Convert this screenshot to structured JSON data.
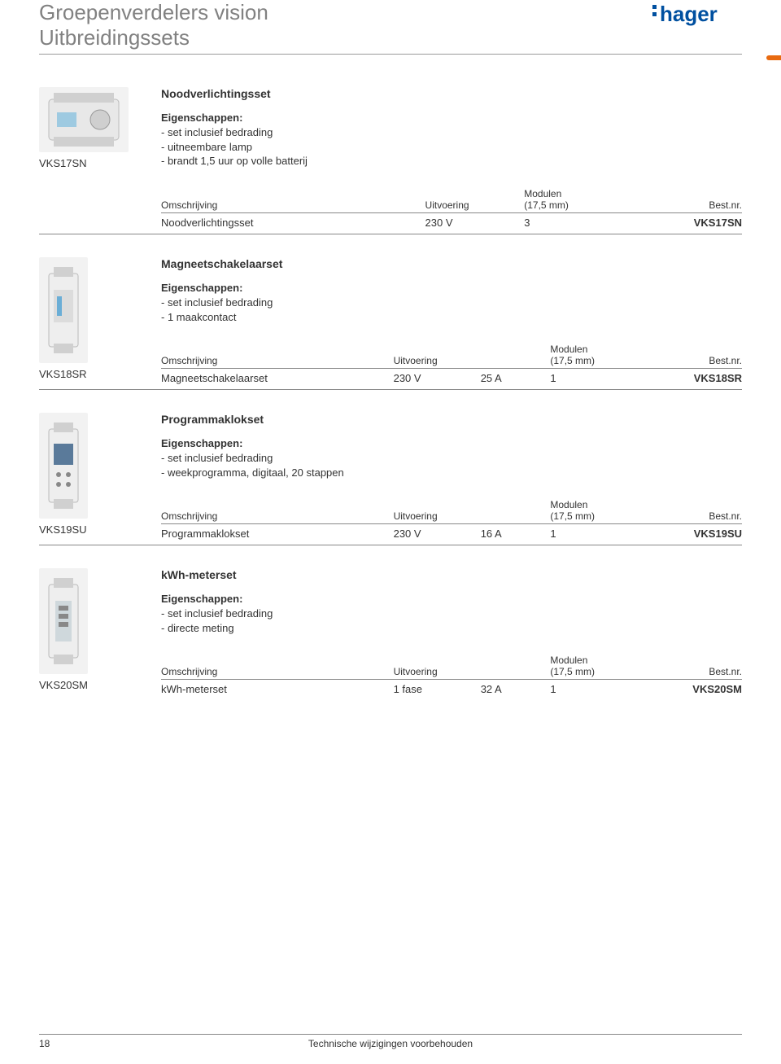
{
  "header": {
    "title_line1": "Groepenverdelers vision",
    "title_line2": "Uitbreidingssets",
    "logo_text": "hager",
    "logo_color": "#0050a0"
  },
  "labels": {
    "eigenschappen": "Eigenschappen:",
    "omschrijving": "Omschrijving",
    "uitvoering": "Uitvoering",
    "modulen_line1": "Modulen",
    "modulen_line2": "(17,5 mm)",
    "bestnr": "Best.nr."
  },
  "products": [
    {
      "sku": "VKS17SN",
      "title": "Noodverlichtingsset",
      "properties": [
        "- set inclusief bedrading",
        "- uitneembare lamp",
        "- brandt 1,5 uur op volle batterij"
      ],
      "has_extra_col": false,
      "row": {
        "omschrijving": "Noodverlichtingsset",
        "uitvoering": "230 V",
        "extra": "",
        "modulen": "3",
        "bestnr": "VKS17SN"
      },
      "img": "wide"
    },
    {
      "sku": "VKS18SR",
      "title": "Magneetschakelaarset",
      "properties": [
        "- set inclusief bedrading",
        "- 1 maakcontact"
      ],
      "has_extra_col": true,
      "row": {
        "omschrijving": "Magneetschakelaarset",
        "uitvoering": "230 V",
        "extra": "25 A",
        "modulen": "1",
        "bestnr": "VKS18SR"
      },
      "img": "narrow"
    },
    {
      "sku": "VKS19SU",
      "title": "Programmaklokset",
      "properties": [
        "- set inclusief bedrading",
        "- weekprogramma, digitaal, 20 stappen"
      ],
      "has_extra_col": true,
      "row": {
        "omschrijving": "Programmaklokset",
        "uitvoering": "230 V",
        "extra": "16 A",
        "modulen": "1",
        "bestnr": "VKS19SU"
      },
      "img": "display"
    },
    {
      "sku": "VKS20SM",
      "title": "kWh-meterset",
      "properties": [
        "- set inclusief bedrading",
        "- directe meting"
      ],
      "has_extra_col": true,
      "row": {
        "omschrijving": "kWh-meterset",
        "uitvoering": "1 fase",
        "extra": "32 A",
        "modulen": "1",
        "bestnr": "VKS20SM"
      },
      "img": "meter"
    }
  ],
  "footer": {
    "page_number": "18",
    "disclaimer": "Technische wijzigingen voorbehouden"
  }
}
